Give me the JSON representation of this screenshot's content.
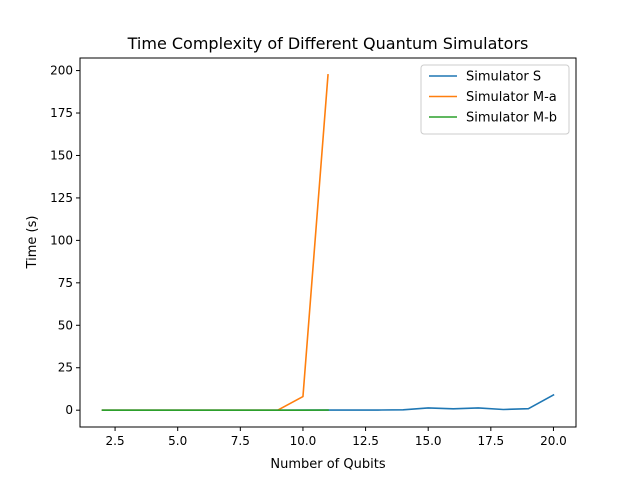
{
  "chart_data": {
    "type": "line",
    "title": "Time Complexity of Different Quantum Simulators",
    "xlabel": "Number of Qubits",
    "ylabel": "Time (s)",
    "xlim": [
      1.1,
      20.9
    ],
    "ylim": [
      -9.9,
      207.4
    ],
    "xticks": [
      2.5,
      5.0,
      7.5,
      10.0,
      12.5,
      15.0,
      17.5,
      20.0
    ],
    "xtick_labels": [
      "2.5",
      "5.0",
      "7.5",
      "10.0",
      "12.5",
      "15.0",
      "17.5",
      "20.0"
    ],
    "yticks": [
      0,
      25,
      50,
      75,
      100,
      125,
      150,
      175,
      200
    ],
    "ytick_labels": [
      "0",
      "25",
      "50",
      "75",
      "100",
      "125",
      "150",
      "175",
      "200"
    ],
    "grid": false,
    "legend_position": "top-right",
    "series": [
      {
        "name": "Simulator S",
        "color": "#1f77b4",
        "x": [
          2,
          3,
          4,
          5,
          6,
          7,
          8,
          9,
          10,
          11,
          12,
          13,
          14,
          15,
          16,
          17,
          18,
          19,
          20
        ],
        "y": [
          0.0,
          0.0,
          0.0,
          0.0,
          0.0,
          0.0,
          0.0,
          0.0,
          0.05,
          0.1,
          0.1,
          0.1,
          0.2,
          1.3,
          0.8,
          1.3,
          0.4,
          0.9,
          9.0
        ]
      },
      {
        "name": "Simulator M-a",
        "color": "#ff7f0e",
        "x": [
          2,
          3,
          4,
          5,
          6,
          7,
          8,
          9,
          10,
          11
        ],
        "y": [
          0.0,
          0.0,
          0.0,
          0.0,
          0.0,
          0.0,
          0.0,
          0.1,
          8.0,
          197.5
        ]
      },
      {
        "name": "Simulator M-b",
        "color": "#2ca02c",
        "x": [
          2,
          3,
          4,
          5,
          6,
          7,
          8,
          9,
          10,
          11
        ],
        "y": [
          0.0,
          0.0,
          0.0,
          0.0,
          0.0,
          0.0,
          0.0,
          0.0,
          0.0,
          0.05
        ]
      }
    ]
  }
}
